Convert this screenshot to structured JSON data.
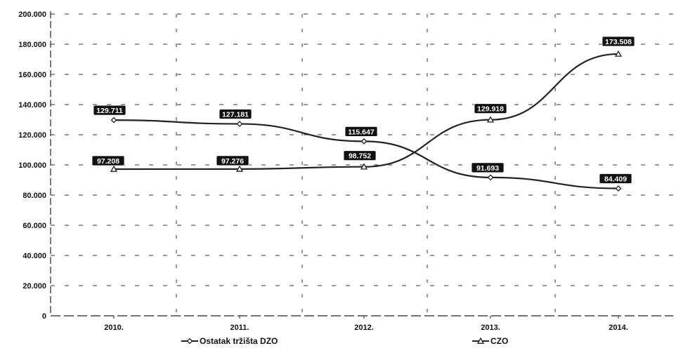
{
  "chart_data": {
    "type": "line",
    "categories": [
      "2010.",
      "2011.",
      "2012.",
      "2013.",
      "2014."
    ],
    "ylim": [
      0,
      200000
    ],
    "y_ticks": [
      0,
      20000,
      40000,
      60000,
      80000,
      100000,
      120000,
      140000,
      160000,
      180000,
      200000
    ],
    "y_tick_labels": [
      "0",
      "20.000",
      "40.000",
      "60.000",
      "80.000",
      "100.000",
      "120.000",
      "140.000",
      "160.000",
      "180.000",
      "200.000"
    ],
    "grid": "dashed",
    "legend_position": "bottom",
    "series": [
      {
        "name": "Ostatak tržišta DZO",
        "values": [
          129711,
          127181,
          115647,
          91693,
          84409
        ],
        "labels": [
          "129.711",
          "127.181",
          "115.647",
          "91.693",
          "84.409"
        ],
        "marker": "diamond",
        "color": "#222222"
      },
      {
        "name": "CZO",
        "values": [
          97208,
          97276,
          98752,
          129918,
          173508
        ],
        "labels": [
          "97.208",
          "97.276",
          "98.752",
          "129.918",
          "173.508"
        ],
        "marker": "triangle",
        "color": "#222222"
      }
    ]
  }
}
